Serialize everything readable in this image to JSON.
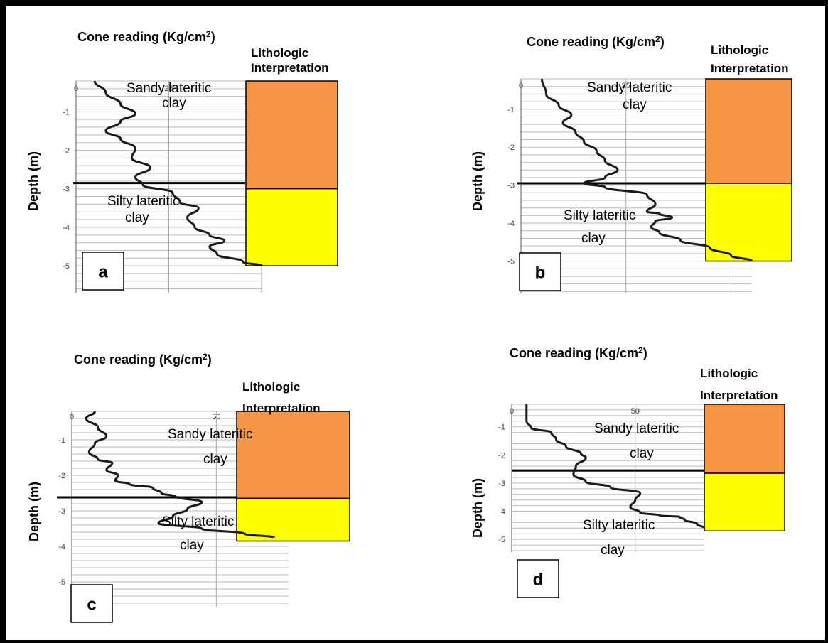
{
  "chart_data": [
    {
      "type": "line",
      "panel_label": "a",
      "xlabel_text": "Cone reading (Kg/cm",
      "xlabel_sup": "2",
      "xlabel_end": ")",
      "ylabel": "Depth (m)",
      "x_ticks": [
        "0",
        "25",
        "50"
      ],
      "y_ticks": [
        "-1",
        "-2",
        "-3",
        "-4",
        "-5"
      ],
      "lithology_title": [
        "Lithologic",
        "Interpretation"
      ],
      "boundary_depth": -2.85,
      "layers": [
        {
          "name": "Sandy lateritic clay",
          "lines": [
            "Sandy lateritic",
            "clay"
          ],
          "top": -0.2,
          "bottom": -3.0,
          "color": "#f79646"
        },
        {
          "name": "Silty lateritic clay",
          "lines": [
            "Silty lateritic",
            "clay"
          ],
          "top": -3.0,
          "bottom": -5.0,
          "color": "#ffff00"
        }
      ],
      "series": [
        {
          "x": [
            5,
            8,
            12,
            16,
            12,
            8,
            12,
            16,
            15,
            20,
            16,
            18,
            26,
            28,
            33,
            30,
            32,
            36,
            40,
            36,
            38,
            45,
            50
          ],
          "y": [
            -0.2,
            -0.5,
            -0.8,
            -1.05,
            -1.25,
            -1.5,
            -1.7,
            -1.95,
            -2.2,
            -2.45,
            -2.7,
            -2.9,
            -3.1,
            -3.35,
            -3.5,
            -3.75,
            -4.0,
            -4.2,
            -4.35,
            -4.5,
            -4.7,
            -4.9,
            -5.0
          ]
        }
      ]
    },
    {
      "type": "line",
      "panel_label": "b",
      "xlabel_text": "Cone reading (Kg/cm",
      "xlabel_sup": "2",
      "xlabel_end": ")",
      "ylabel": "Depth (m)",
      "x_ticks": [
        "0",
        "25",
        "50"
      ],
      "y_ticks": [
        "-1",
        "-2",
        "-3",
        "-4",
        "-5"
      ],
      "lithology_title": [
        "Lithologic",
        "Interpretation"
      ],
      "boundary_depth": -2.95,
      "layers": [
        {
          "name": "Sandy lateritic clay",
          "lines": [
            "Sandy lateritic",
            "clay"
          ],
          "top": -0.2,
          "bottom": -2.95,
          "color": "#f79646"
        },
        {
          "name": "Silty lateritic clay",
          "lines": [
            "Silty lateritic",
            "clay"
          ],
          "top": -2.95,
          "bottom": -5.0,
          "color": "#ffff00"
        }
      ],
      "series": [
        {
          "x": [
            5,
            6,
            9,
            12,
            10,
            13,
            15,
            18,
            20,
            23,
            20,
            15,
            20,
            30,
            32,
            30,
            33,
            36,
            32,
            31,
            33,
            38,
            45,
            50,
            55
          ],
          "y": [
            -0.2,
            -0.6,
            -0.9,
            -1.15,
            -1.35,
            -1.6,
            -1.85,
            -2.1,
            -2.35,
            -2.6,
            -2.8,
            -2.95,
            -3.05,
            -3.25,
            -3.5,
            -3.7,
            -3.75,
            -3.85,
            -3.95,
            -4.1,
            -4.25,
            -4.45,
            -4.65,
            -4.85,
            -5.0
          ]
        }
      ]
    },
    {
      "type": "line",
      "panel_label": "c",
      "xlabel_text": "Cone reading (Kg/cm",
      "xlabel_sup": "2",
      "xlabel_end": ")",
      "ylabel": "Depth (m)",
      "x_ticks": [
        "0",
        "50"
      ],
      "y_ticks": [
        "-1",
        "-2",
        "-3",
        "-4",
        "-5"
      ],
      "lithology_title": [
        "Lithologic",
        "Interpretation"
      ],
      "boundary_depth": -2.62,
      "layers": [
        {
          "name": "Sandy lateritic clay",
          "lines": [
            "Sandy lateritic",
            "clay"
          ],
          "top": -0.2,
          "bottom": -2.65,
          "color": "#f79646"
        },
        {
          "name": "Silty lateritic clay",
          "lines": [
            "Silty lateritic",
            "clay"
          ],
          "top": -2.65,
          "bottom": -3.85,
          "color": "#ffff00"
        }
      ],
      "series": [
        {
          "x": [
            8,
            5,
            9,
            12,
            8,
            6,
            9,
            14,
            12,
            16,
            15,
            20,
            28,
            31,
            36,
            45,
            40,
            35,
            30,
            45,
            60,
            70
          ],
          "y": [
            -0.2,
            -0.4,
            -0.65,
            -0.9,
            -1.1,
            -1.35,
            -1.55,
            -1.65,
            -1.85,
            -2.0,
            -2.15,
            -2.25,
            -2.35,
            -2.5,
            -2.6,
            -2.75,
            -2.95,
            -3.15,
            -3.35,
            -3.5,
            -3.65,
            -3.75
          ]
        }
      ]
    },
    {
      "type": "line",
      "panel_label": "d",
      "xlabel_text": "Cone reading (Kg/cm",
      "xlabel_sup": "2",
      "xlabel_end": ")",
      "ylabel": "Depth (m)",
      "x_ticks": [
        "0",
        "50"
      ],
      "y_ticks": [
        "-1",
        "-2",
        "-3",
        "-4",
        "-5"
      ],
      "lithology_title": [
        "Lithologic",
        "Interpretation"
      ],
      "boundary_depth": -2.55,
      "layers": [
        {
          "name": "Sandy lateritic clay",
          "lines": [
            "Sandy lateritic",
            "clay"
          ],
          "top": -0.2,
          "bottom": -2.65,
          "color": "#f79646"
        },
        {
          "name": "Silty lateritic clay",
          "lines": [
            "Silty lateritic",
            "clay"
          ],
          "top": -2.65,
          "bottom": -4.7,
          "color": "#ffff00"
        }
      ],
      "series": [
        {
          "x": [
            6,
            6,
            8,
            16,
            18,
            22,
            28,
            30,
            26,
            25,
            30,
            40,
            52,
            50,
            48,
            52,
            60,
            68,
            70,
            75,
            78
          ],
          "y": [
            -0.2,
            -0.8,
            -1.05,
            -1.2,
            -1.45,
            -1.7,
            -1.95,
            -2.1,
            -2.4,
            -2.7,
            -2.95,
            -3.15,
            -3.35,
            -3.6,
            -3.85,
            -4.05,
            -4.15,
            -4.2,
            -4.3,
            -4.45,
            -4.6
          ]
        }
      ]
    }
  ]
}
